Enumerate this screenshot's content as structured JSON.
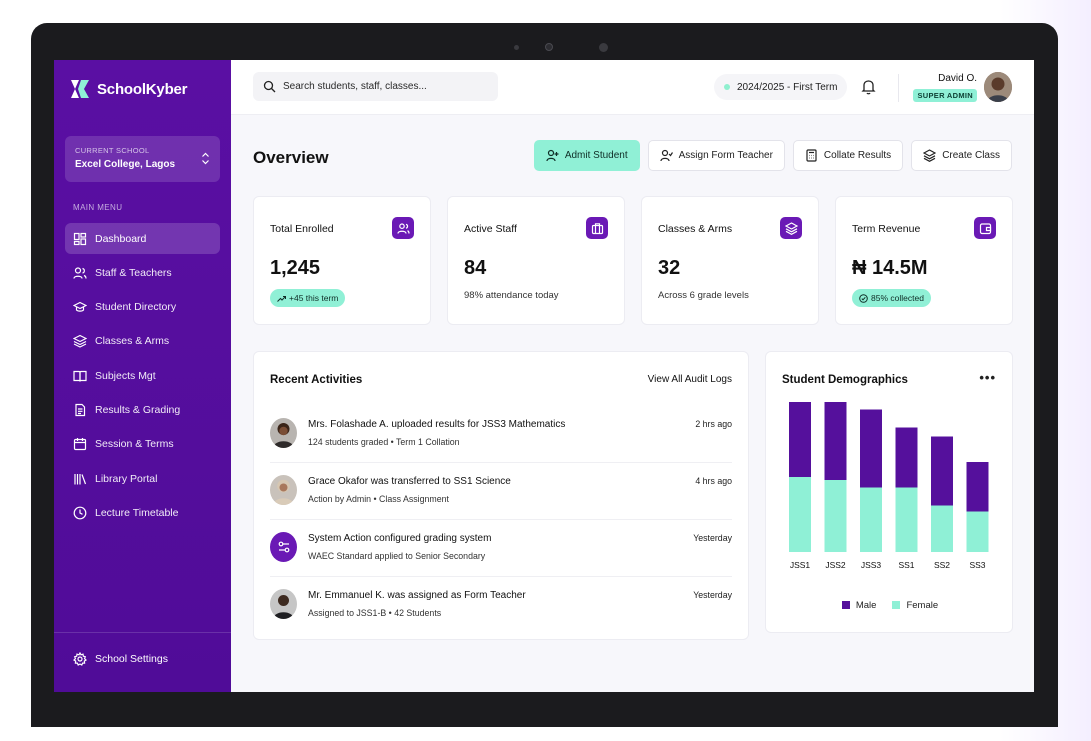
{
  "brand": {
    "name": "SchoolKyber"
  },
  "school": {
    "caption": "CURRENT SCHOOL",
    "name": "Excel College, Lagos"
  },
  "menu": {
    "caption": "MAIN MENU",
    "items": [
      {
        "label": "Dashboard",
        "icon": "dashboard-icon"
      },
      {
        "label": "Staff & Teachers",
        "icon": "users-icon"
      },
      {
        "label": "Student Directory",
        "icon": "graduation-cap-icon"
      },
      {
        "label": "Classes & Arms",
        "icon": "layers-icon"
      },
      {
        "label": "Subjects Mgt",
        "icon": "book-icon"
      },
      {
        "label": "Results & Grading",
        "icon": "document-icon"
      },
      {
        "label": "Session & Terms",
        "icon": "calendar-icon"
      },
      {
        "label": "Library Portal",
        "icon": "library-icon"
      },
      {
        "label": "Lecture Timetable",
        "icon": "clock-icon"
      }
    ],
    "settings": "School Settings"
  },
  "header": {
    "search_placeholder": "Search students, staff, classes...",
    "term": "2024/2025 - First Term",
    "user_name": "David O.",
    "user_role": "SUPER ADMIN"
  },
  "page": {
    "title": "Overview"
  },
  "actions": {
    "admit": "Admit Student",
    "assign": "Assign Form Teacher",
    "collate": "Collate Results",
    "create": "Create Class"
  },
  "stats": [
    {
      "label": "Total Enrolled",
      "value": "1,245",
      "sub": "+45 this term",
      "icon": "users-icon"
    },
    {
      "label": "Active Staff",
      "value": "84",
      "sub": "98% attendance today",
      "icon": "briefcase-icon"
    },
    {
      "label": "Classes & Arms",
      "value": "32",
      "sub": "Across 6 grade levels",
      "icon": "layers-icon"
    },
    {
      "label": "Term Revenue",
      "value": "₦ 14.5M",
      "sub": "85% collected",
      "icon": "wallet-icon"
    }
  ],
  "activities": {
    "title": "Recent Activities",
    "view_all": "View All Audit Logs",
    "items": [
      {
        "title": "Mrs. Folashade A. uploaded results for JSS3 Mathematics",
        "sub": "124 students graded • Term 1 Collation",
        "time": "2 hrs ago"
      },
      {
        "title": "Grace Okafor was transferred to SS1 Science",
        "sub": "Action by Admin • Class Assignment",
        "time": "4 hrs ago"
      },
      {
        "title": "System Action configured grading system",
        "sub": "WAEC Standard applied to Senior Secondary",
        "time": "Yesterday"
      },
      {
        "title": "Mr. Emmanuel K. was assigned as Form Teacher",
        "sub": "Assigned to JSS1-B • 42 Students",
        "time": "Yesterday"
      }
    ]
  },
  "demographics": {
    "title": "Student Demographics",
    "more": "•••",
    "colors": {
      "male": "#55109c",
      "female": "#8ff0d6"
    }
  },
  "chart_data": {
    "type": "bar",
    "stacked": true,
    "categories": [
      "JSS1",
      "JSS2",
      "JSS3",
      "SS1",
      "SS2",
      "SS3"
    ],
    "series": [
      {
        "name": "Female",
        "values": [
          50,
          48,
          43,
          43,
          31,
          27
        ]
      },
      {
        "name": "Male",
        "values": [
          50,
          52,
          52,
          40,
          46,
          33
        ]
      }
    ],
    "legend": "bottom",
    "ylim": [
      0,
      100
    ]
  }
}
